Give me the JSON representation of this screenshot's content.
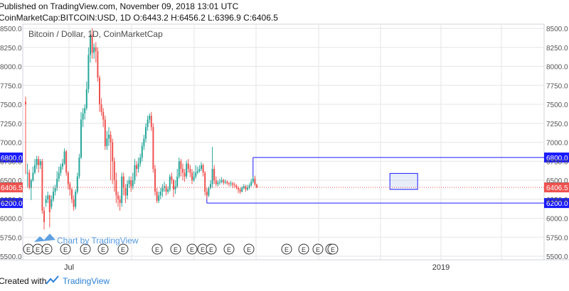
{
  "header": {
    "published": "Published on TradingView.com, November 09, 2018 13:01 UTC",
    "ohlc": "CoinMarketCap:BITCOIN:USD, 1D O:6443.2 H:6456.2 L:6396.9 C:6406.5"
  },
  "footer": {
    "created_with": "Created with",
    "brand": "TradingView"
  },
  "watermark": "Chart by TradingView",
  "colors": {
    "up": "#26a69a",
    "down": "#ef5350",
    "box": "#1a1aff",
    "price_line": "#ef5350",
    "grid": "#e6e6e6"
  },
  "chart_data": {
    "type": "candlestick",
    "title": "Bitcoin / Dollar, 1D, CoinMarketCap",
    "ylim": [
      5500,
      8500
    ],
    "y_ticks": [
      5500,
      5750,
      6000,
      6250,
      6500,
      6750,
      7000,
      7250,
      7500,
      7750,
      8000,
      8250,
      8500
    ],
    "x_ticks": [
      "Jul",
      "2019"
    ],
    "levels": [
      {
        "label": "6800.0",
        "value": 6800
      },
      {
        "label": "6200.0",
        "value": 6200
      }
    ],
    "last_price": {
      "label": "6406.5",
      "value": 6406.5
    },
    "range_box": {
      "x_start": 123,
      "x_end": 215,
      "y_low": 6200,
      "y_high": 6800
    },
    "consolidation_box": {
      "x_start": 197,
      "x_end": 212,
      "y_low": 6380,
      "y_high": 6590
    },
    "candles": [
      [
        7535,
        7500,
        7600,
        6580
      ],
      [
        6600,
        6600,
        6720,
        6400
      ],
      [
        6600,
        6400,
        6640,
        6380
      ],
      [
        6400,
        6500,
        6520,
        6240
      ],
      [
        6500,
        6600,
        6680,
        6480
      ],
      [
        6600,
        6700,
        6780,
        6580
      ],
      [
        6700,
        6780,
        6820,
        6650
      ],
      [
        6780,
        6700,
        6820,
        6600
      ],
      [
        6700,
        6750,
        6780,
        6650
      ],
      [
        6750,
        6100,
        6780,
        6060
      ],
      [
        6100,
        5950,
        6150,
        5850
      ],
      [
        6200,
        6250,
        6300,
        6150
      ],
      [
        6250,
        6300,
        6350,
        6200
      ],
      [
        6300,
        6080,
        6310,
        5880
      ],
      [
        6150,
        6250,
        6300,
        6120
      ],
      [
        6250,
        6350,
        6420,
        6220
      ],
      [
        6350,
        6400,
        6440,
        6300
      ],
      [
        6400,
        6520,
        6620,
        6360
      ],
      [
        6520,
        6600,
        6680,
        6480
      ],
      [
        6600,
        6680,
        6720,
        6560
      ],
      [
        6680,
        6720,
        6780,
        6640
      ],
      [
        6720,
        6880,
        6920,
        6700
      ],
      [
        6880,
        6600,
        6900,
        6560
      ],
      [
        6600,
        6450,
        6620,
        6380
      ],
      [
        6450,
        6380,
        6480,
        6300
      ],
      [
        6380,
        6250,
        6400,
        6200
      ],
      [
        6250,
        6150,
        6300,
        6100
      ],
      [
        6150,
        6350,
        6380,
        6120
      ],
      [
        6350,
        6550,
        6600,
        6320
      ],
      [
        6550,
        6800,
        6850,
        6520
      ],
      [
        6800,
        7300,
        7400,
        6780
      ],
      [
        7300,
        7380,
        7450,
        7200
      ],
      [
        7380,
        7450,
        7500,
        7300
      ],
      [
        7450,
        7700,
        7800,
        7420
      ],
      [
        7700,
        8150,
        8250,
        7650
      ],
      [
        8150,
        8420,
        8480,
        8050
      ],
      [
        8420,
        8180,
        8500,
        8100
      ],
      [
        8180,
        8250,
        8300,
        8100
      ],
      [
        8250,
        8200,
        8320,
        8050
      ],
      [
        8200,
        7850,
        8250,
        7800
      ],
      [
        7850,
        7500,
        7880,
        7400
      ],
      [
        7500,
        7400,
        7580,
        7350
      ],
      [
        7400,
        7300,
        7450,
        7200
      ],
      [
        7300,
        6950,
        7350,
        6900
      ],
      [
        6950,
        7050,
        7150,
        6900
      ],
      [
        7050,
        7100,
        7200,
        6950
      ],
      [
        7100,
        7000,
        7150,
        6500
      ],
      [
        7000,
        6750,
        7050,
        6450
      ],
      [
        6750,
        6500,
        6800,
        6350
      ],
      [
        6500,
        6300,
        6600,
        6200
      ],
      [
        6300,
        6250,
        6350,
        6150
      ],
      [
        6250,
        6200,
        6300,
        6100
      ],
      [
        6200,
        6550,
        6600,
        6150
      ],
      [
        6550,
        6400,
        6600,
        6300
      ],
      [
        6400,
        6300,
        6450,
        6200
      ],
      [
        6300,
        6450,
        6500,
        6250
      ],
      [
        6450,
        6500,
        6550,
        6400
      ],
      [
        6500,
        6420,
        6550,
        6350
      ],
      [
        6420,
        6500,
        6600,
        6380
      ],
      [
        6500,
        6700,
        6780,
        6450
      ],
      [
        6700,
        6650,
        6750,
        6550
      ],
      [
        6650,
        6720,
        6800,
        6600
      ],
      [
        6720,
        6800,
        6850,
        6680
      ],
      [
        6800,
        6950,
        7000,
        6750
      ],
      [
        6950,
        7050,
        7100,
        6900
      ],
      [
        7050,
        7200,
        7250,
        7000
      ],
      [
        7200,
        7300,
        7350,
        7150
      ],
      [
        7300,
        7350,
        7380,
        7250
      ],
      [
        7350,
        7200,
        7400,
        7150
      ],
      [
        7200,
        6650,
        7250,
        6600
      ],
      [
        6650,
        6350,
        6700,
        6300
      ],
      [
        6350,
        6230,
        6400,
        6200
      ],
      [
        6230,
        6300,
        6350,
        6200
      ],
      [
        6300,
        6350,
        6400,
        6250
      ],
      [
        6350,
        6400,
        6450,
        6280
      ],
      [
        6400,
        6420,
        6480,
        6350
      ],
      [
        6420,
        6350,
        6450,
        6300
      ],
      [
        6350,
        6380,
        6420,
        6320
      ],
      [
        6380,
        6550,
        6580,
        6350
      ],
      [
        6550,
        6500,
        6600,
        6450
      ],
      [
        6500,
        6380,
        6520,
        6280
      ],
      [
        6380,
        6420,
        6500,
        6320
      ],
      [
        6420,
        6550,
        6650,
        6400
      ],
      [
        6550,
        6750,
        6800,
        6520
      ],
      [
        6750,
        6650,
        6780,
        6550
      ],
      [
        6650,
        6600,
        6720,
        6500
      ],
      [
        6600,
        6550,
        6650,
        6480
      ],
      [
        6550,
        6720,
        6760,
        6520
      ],
      [
        6720,
        6650,
        6780,
        6600
      ],
      [
        6650,
        6600,
        6700,
        6540
      ],
      [
        6600,
        6500,
        6650,
        6450
      ],
      [
        6500,
        6550,
        6620,
        6480
      ],
      [
        6550,
        6600,
        6700,
        6520
      ],
      [
        6600,
        6620,
        6680,
        6580
      ],
      [
        6620,
        6650,
        6700,
        6600
      ],
      [
        6650,
        6700,
        6740,
        6620
      ],
      [
        6700,
        6600,
        6720,
        6550
      ],
      [
        6600,
        6350,
        6620,
        6300
      ],
      [
        6350,
        6300,
        6400,
        6250
      ],
      [
        6300,
        6400,
        6420,
        6280
      ],
      [
        6400,
        6450,
        6500,
        6380
      ],
      [
        6450,
        6650,
        6940,
        6400
      ],
      [
        6650,
        6500,
        6700,
        6450
      ],
      [
        6500,
        6450,
        6550,
        6420
      ],
      [
        6450,
        6470,
        6500,
        6420
      ],
      [
        6470,
        6480,
        6520,
        6440
      ],
      [
        6480,
        6500,
        6540,
        6460
      ],
      [
        6500,
        6470,
        6520,
        6440
      ],
      [
        6470,
        6480,
        6510,
        6450
      ],
      [
        6480,
        6460,
        6500,
        6440
      ],
      [
        6460,
        6450,
        6480,
        6420
      ],
      [
        6450,
        6460,
        6490,
        6420
      ],
      [
        6460,
        6440,
        6480,
        6400
      ],
      [
        6440,
        6430,
        6470,
        6400
      ],
      [
        6430,
        6400,
        6450,
        6380
      ],
      [
        6400,
        6380,
        6420,
        6330
      ],
      [
        6380,
        6350,
        6400,
        6320
      ],
      [
        6350,
        6400,
        6420,
        6340
      ],
      [
        6400,
        6420,
        6450,
        6380
      ],
      [
        6420,
        6380,
        6440,
        6350
      ],
      [
        6380,
        6400,
        6440,
        6360
      ],
      [
        6400,
        6430,
        6460,
        6380
      ],
      [
        6430,
        6480,
        6520,
        6420
      ],
      [
        6480,
        6520,
        6560,
        6460
      ],
      [
        6520,
        6443,
        6560,
        6420
      ],
      [
        6443,
        6406.5,
        6456,
        6397
      ]
    ]
  }
}
